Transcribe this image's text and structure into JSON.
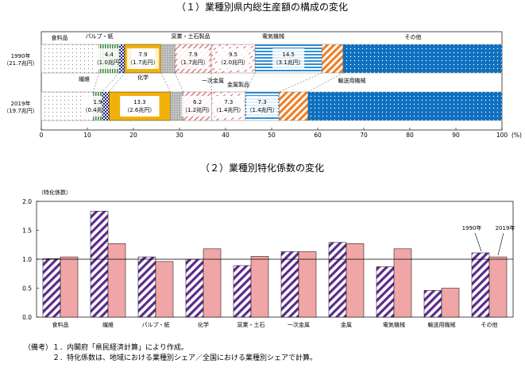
{
  "chart_data": [
    {
      "type": "bar",
      "subtype": "stacked-100-percent",
      "title": "（１）業種別県内総生産額の構成の変化",
      "xlim": [
        0,
        100
      ],
      "xticks": [
        0,
        10,
        20,
        30,
        40,
        50,
        60,
        70,
        80,
        90,
        100
      ],
      "xunit": "(%)",
      "rows": [
        {
          "label": "1990年",
          "sublabel": "（21.7兆円）"
        },
        {
          "label": "2019年",
          "sublabel": "（19.7兆円）"
        }
      ],
      "segments": [
        {
          "name": "食料品",
          "values": [
            12.5,
            11.3
          ],
          "color": "#ffffff",
          "pattern": "dots-gray"
        },
        {
          "name": "繊維",
          "values": [
            4.4,
            1.9
          ],
          "color": "#2e8b2e",
          "pattern": "vstripes-green",
          "labels": [
            [
              "4.4",
              "（1.0兆円）"
            ],
            [
              "1.9",
              "（0.4兆円）"
            ]
          ]
        },
        {
          "name": "パルプ・紙",
          "values": [
            1.2,
            1.5
          ],
          "color": "#1a237e",
          "pattern": "checker-navy"
        },
        {
          "name": "化学",
          "values": [
            7.9,
            13.3
          ],
          "color": "#f2b10a",
          "pattern": "outlined-yellow",
          "labels": [
            [
              "7.9",
              "（1.7兆円）"
            ],
            [
              "13.3",
              "（2.6兆円）"
            ]
          ]
        },
        {
          "name": "窯業・土石製品",
          "values": [
            3.0,
            2.8
          ],
          "color": "#aaaaaa",
          "pattern": "gray-texture"
        },
        {
          "name": "一次金属",
          "values": [
            7.9,
            6.2
          ],
          "color": "#e05a5a",
          "pattern": "diag-red",
          "labels": [
            [
              "7.9",
              "（1.7兆円）"
            ],
            [
              "6.2",
              "（1.2兆円）"
            ]
          ]
        },
        {
          "name": "金属製品",
          "values": [
            9.5,
            7.3
          ],
          "color": "#e05a5a",
          "pattern": "dashed-red",
          "labels": [
            [
              "9.5",
              "（2.0兆円）"
            ],
            [
              "7.3",
              "（1.4兆円）"
            ]
          ]
        },
        {
          "name": "電気機械",
          "values": [
            14.5,
            7.3
          ],
          "color": "#2f8fd8",
          "pattern": "hstripes-blue",
          "labels": [
            [
              "14.5",
              "（3.1兆円）"
            ],
            [
              "7.3",
              "（1.4兆円）"
            ]
          ]
        },
        {
          "name": "輸送用機械",
          "values": [
            4.6,
            6.3
          ],
          "color": "#ef7d22",
          "pattern": "diag-orange"
        },
        {
          "name": "その他",
          "values": [
            34.5,
            42.1
          ],
          "color": "#0d6fc0",
          "pattern": "dots-blue"
        }
      ]
    },
    {
      "type": "bar",
      "title": "（２）業種別特化係数の変化",
      "ylabel": "（特化係数）",
      "ylim": [
        0,
        2.0
      ],
      "yticks": [
        "0.0",
        "0.5",
        "1.0",
        "1.5",
        "2.0"
      ],
      "reference_line": 1.0,
      "categories": [
        "食料品",
        "繊維",
        "パルプ・紙",
        "化学",
        "窯業・土石",
        "一次金属",
        "金属",
        "電気機械",
        "輸送用機械",
        "その他"
      ],
      "series": [
        {
          "name": "1990年",
          "values": [
            1.01,
            1.83,
            1.04,
            1.0,
            0.89,
            1.13,
            1.29,
            0.87,
            0.46,
            1.11
          ],
          "color": "#5b2a8c",
          "pattern": "diag-purple"
        },
        {
          "name": "2019年",
          "values": [
            1.04,
            1.27,
            0.96,
            1.18,
            1.05,
            1.13,
            1.27,
            1.18,
            0.5,
            1.04
          ],
          "color": "#f0a6a6",
          "pattern": "solid-pink"
        }
      ],
      "legend_placement": "annotated-top-right"
    }
  ],
  "notes": {
    "head": "（備考）",
    "lines": [
      "１．内閣府「県民経済計算」により作成。",
      "２．特化係数は、地域における業種別シェア／全国における業種別シェアで計算。"
    ]
  }
}
